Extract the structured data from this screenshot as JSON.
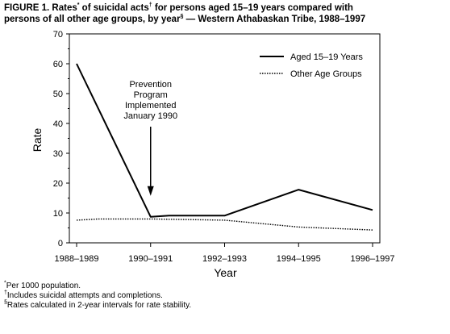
{
  "figure": {
    "title_line1_a": "FIGURE 1. Rates",
    "title_line1_sup1": "*",
    "title_line1_b": " of suicidal acts",
    "title_line1_sup2": "†",
    "title_line1_c": " for persons aged 15–19 years compared with",
    "title_line2_a": "persons of all other age groups, by year",
    "title_line2_sup": "§",
    "title_line2_b": " — Western Athabaskan Tribe, 1988–1997"
  },
  "chart_data": {
    "type": "line",
    "xlabel": "Year",
    "ylabel": "Rate",
    "categories": [
      "1988–1989",
      "1990–1991",
      "1992–1993",
      "1994–1995",
      "1996–1997"
    ],
    "ylim": [
      0,
      70
    ],
    "yticks": [
      0,
      10,
      20,
      30,
      40,
      50,
      60,
      70
    ],
    "grid": false,
    "legend_position": "top-right",
    "series": [
      {
        "name": "Aged 15–19 Years",
        "style": "solid",
        "color": "#000000",
        "points": [
          [
            0,
            60
          ],
          [
            1,
            8.7
          ],
          [
            1.25,
            9.1
          ],
          [
            2,
            9.1
          ],
          [
            3,
            17.8
          ],
          [
            4,
            11
          ]
        ]
      },
      {
        "name": "Other Age Groups",
        "style": "dotted",
        "color": "#000000",
        "points": [
          [
            0,
            7.6
          ],
          [
            0.3,
            8.0
          ],
          [
            1,
            8.0
          ],
          [
            2,
            7.6
          ],
          [
            3,
            5.3
          ],
          [
            4,
            4.3
          ]
        ]
      }
    ],
    "annotation": {
      "lines": [
        "Prevention",
        "Program",
        "Implemented",
        "January 1990"
      ],
      "arrow_target": [
        1,
        19
      ]
    }
  },
  "footnotes": {
    "note1_sup": "*",
    "note1_text": "Per 1000 population.",
    "note2_sup": "†",
    "note2_text": "Includes suicidal attempts and completions.",
    "note3_sup": "§",
    "note3_text": "Rates calculated in 2-year intervals for rate stability."
  }
}
